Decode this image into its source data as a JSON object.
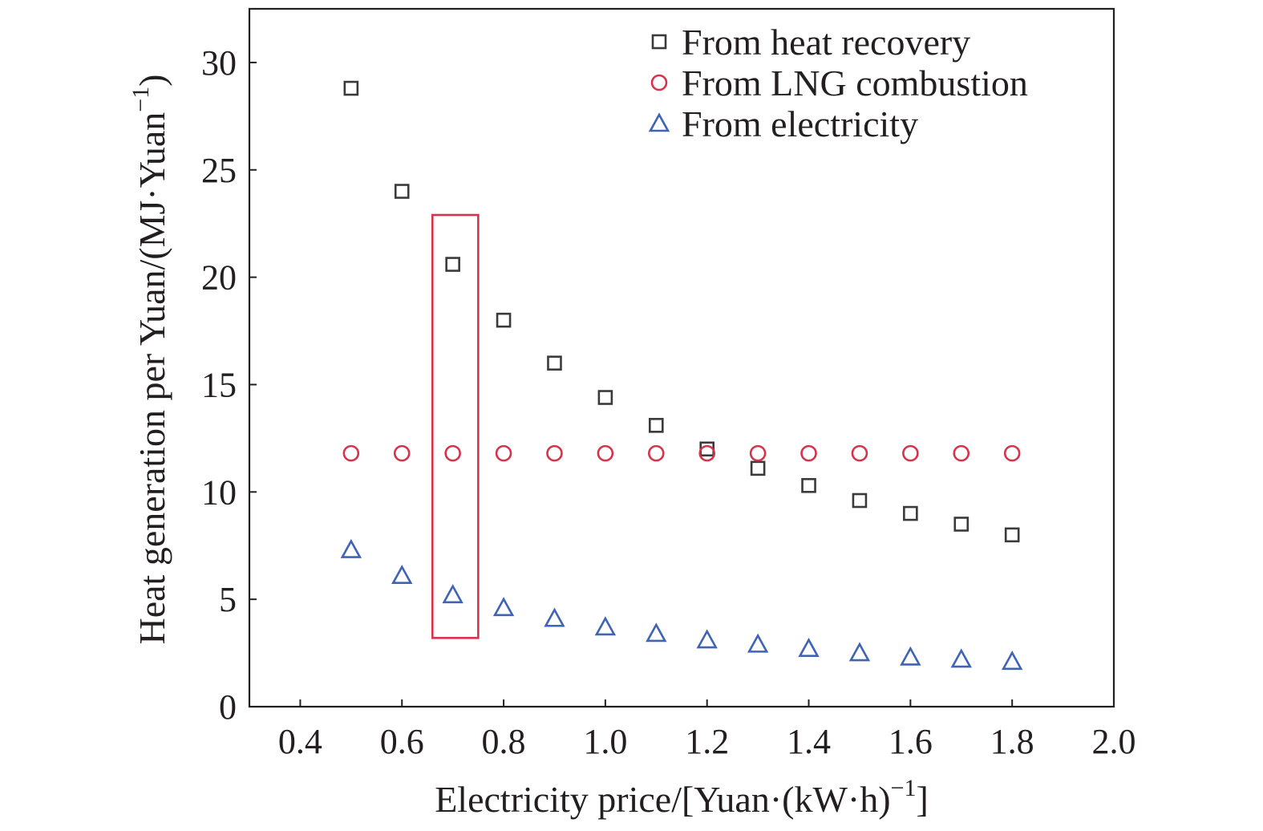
{
  "chart_data": {
    "type": "scatter",
    "title": "",
    "xlabel": "Electricity price/[Yuan·(kW·h)",
    "xlabel_sup": "−1",
    "xlabel_end": "]",
    "ylabel": "Heat generation per Yuan/(MJ·Yuan",
    "ylabel_sup": "−1",
    "ylabel_end": ")",
    "xlim": [
      0.3,
      2.0
    ],
    "ylim": [
      0,
      32.5
    ],
    "x_ticks": [
      0.4,
      0.6,
      0.8,
      1.0,
      1.2,
      1.4,
      1.6,
      1.8,
      2.0
    ],
    "x_tick_labels": [
      "0.4",
      "0.6",
      "0.8",
      "1.0",
      "1.2",
      "1.4",
      "1.6",
      "1.8",
      "2.0"
    ],
    "y_ticks": [
      0,
      5,
      10,
      15,
      20,
      25,
      30
    ],
    "y_tick_labels": [
      "0",
      "5",
      "10",
      "15",
      "20",
      "25",
      "30"
    ],
    "grid": false,
    "legend_position": "top-right",
    "x": [
      0.5,
      0.6,
      0.7,
      0.8,
      0.9,
      1.0,
      1.1,
      1.2,
      1.3,
      1.4,
      1.5,
      1.6,
      1.7,
      1.8
    ],
    "series": [
      {
        "name": "From heat recovery",
        "marker": "square",
        "color": "#3a3a3a",
        "values": [
          28.8,
          24.0,
          20.6,
          18.0,
          16.0,
          14.4,
          13.1,
          12.0,
          11.1,
          10.3,
          9.6,
          9.0,
          8.5,
          8.0
        ]
      },
      {
        "name": "From LNG combustion",
        "marker": "circle",
        "color": "#d6334a",
        "values": [
          11.8,
          11.8,
          11.8,
          11.8,
          11.8,
          11.8,
          11.8,
          11.8,
          11.8,
          11.8,
          11.8,
          11.8,
          11.8,
          11.8
        ]
      },
      {
        "name": "From electricity",
        "marker": "triangle",
        "color": "#3f63b5",
        "values": [
          7.3,
          6.1,
          5.2,
          4.6,
          4.1,
          3.7,
          3.4,
          3.1,
          2.9,
          2.7,
          2.5,
          2.3,
          2.2,
          2.1
        ]
      }
    ],
    "highlight": {
      "color": "#d6334a",
      "x_range": [
        0.66,
        0.75
      ],
      "y_range": [
        3.2,
        22.9
      ]
    }
  }
}
